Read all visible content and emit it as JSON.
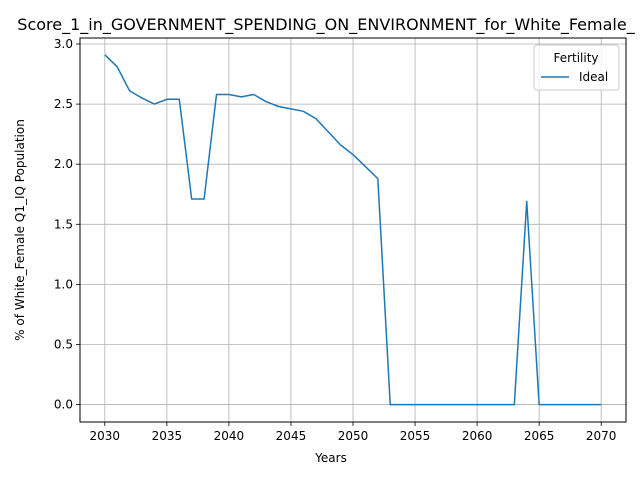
{
  "chart_data": {
    "type": "line",
    "title": "Score_1_in_GOVERNMENT_SPENDING_ON_ENVIRONMENT_for_White_Female_",
    "xlabel": "Years",
    "ylabel": "% of White_Female Q1_IQ Population",
    "xlim": [
      2028.0,
      2072.0
    ],
    "ylim": [
      -0.145,
      3.05
    ],
    "x_ticks": [
      2030,
      2035,
      2040,
      2045,
      2050,
      2055,
      2060,
      2065,
      2070
    ],
    "y_ticks": [
      0.0,
      0.5,
      1.0,
      1.5,
      2.0,
      2.5,
      3.0
    ],
    "x_tick_labels": [
      "2030",
      "2035",
      "2040",
      "2045",
      "2050",
      "2055",
      "2060",
      "2065",
      "2070"
    ],
    "y_tick_labels": [
      "0.0",
      "0.5",
      "1.0",
      "1.5",
      "2.0",
      "2.5",
      "3.0"
    ],
    "grid": true,
    "legend": {
      "title": "Fertility",
      "placement": "top-right"
    },
    "series": [
      {
        "name": "Ideal",
        "color": "#1f77b4",
        "x": [
          2030,
          2031,
          2032,
          2033,
          2034,
          2035,
          2036,
          2037,
          2038,
          2039,
          2040,
          2041,
          2042,
          2043,
          2044,
          2045,
          2046,
          2047,
          2048,
          2049,
          2050,
          2051,
          2052,
          2053,
          2054,
          2055,
          2056,
          2057,
          2058,
          2059,
          2060,
          2061,
          2062,
          2063,
          2064,
          2065,
          2066,
          2067,
          2068,
          2069,
          2070
        ],
        "values": [
          2.91,
          2.81,
          2.61,
          2.55,
          2.5,
          2.54,
          2.54,
          1.71,
          1.71,
          2.58,
          2.58,
          2.56,
          2.58,
          2.52,
          2.48,
          2.46,
          2.44,
          2.38,
          2.27,
          2.16,
          2.08,
          1.98,
          1.88,
          0.0,
          0.0,
          0.0,
          0.0,
          0.0,
          0.0,
          0.0,
          0.0,
          0.0,
          0.0,
          0.0,
          1.69,
          0.0,
          0.0,
          0.0,
          0.0,
          0.0,
          0.0
        ]
      }
    ]
  }
}
